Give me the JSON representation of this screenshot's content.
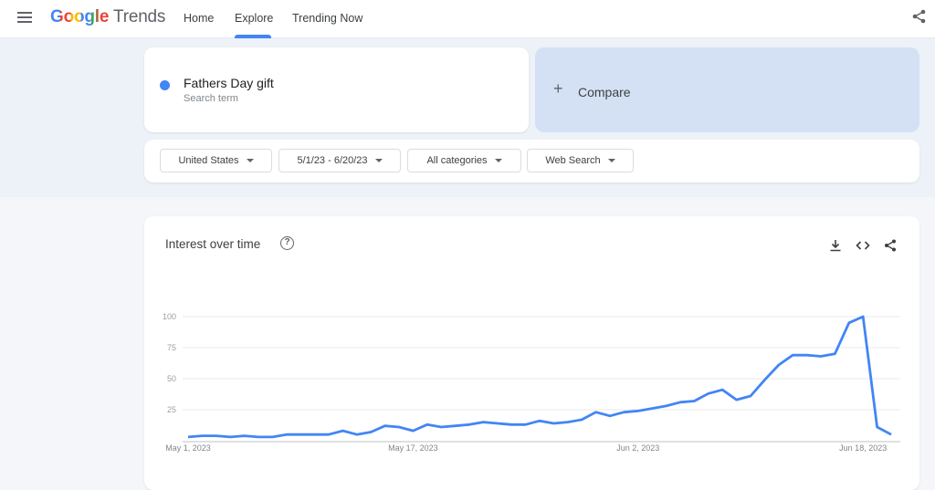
{
  "header": {
    "logo_google": "Google",
    "logo_trends": "Trends",
    "nav": [
      {
        "label": "Home"
      },
      {
        "label": "Explore",
        "active": true
      },
      {
        "label": "Trending Now"
      }
    ],
    "accent": "#4285f4"
  },
  "search": {
    "term": "Fathers Day gift",
    "term_type": "Search term",
    "term_color": "#4285f4",
    "compare_label": "Compare"
  },
  "filters": {
    "region": "United States",
    "date_range": "5/1/23 - 6/20/23",
    "category": "All categories",
    "property": "Web Search"
  },
  "chart_card": {
    "title": "Interest over time"
  },
  "chart_data": {
    "type": "line",
    "title": "Interest over time",
    "ylim": [
      0,
      100
    ],
    "yticks": [
      25,
      50,
      75,
      100
    ],
    "xtick_labels": [
      "May 1, 2023",
      "May 17, 2023",
      "Jun 2, 2023",
      "Jun 18, 2023"
    ],
    "xtick_dates": [
      "2023-05-01",
      "2023-05-17",
      "2023-06-02",
      "2023-06-18"
    ],
    "grid": true,
    "series": [
      {
        "color": "#4285f4",
        "x": [
          "2023-05-01",
          "2023-05-02",
          "2023-05-03",
          "2023-05-04",
          "2023-05-05",
          "2023-05-06",
          "2023-05-07",
          "2023-05-08",
          "2023-05-09",
          "2023-05-10",
          "2023-05-11",
          "2023-05-12",
          "2023-05-13",
          "2023-05-14",
          "2023-05-15",
          "2023-05-16",
          "2023-05-17",
          "2023-05-18",
          "2023-05-19",
          "2023-05-20",
          "2023-05-21",
          "2023-05-22",
          "2023-05-23",
          "2023-05-24",
          "2023-05-25",
          "2023-05-26",
          "2023-05-27",
          "2023-05-28",
          "2023-05-29",
          "2023-05-30",
          "2023-05-31",
          "2023-06-01",
          "2023-06-02",
          "2023-06-03",
          "2023-06-04",
          "2023-06-05",
          "2023-06-06",
          "2023-06-07",
          "2023-06-08",
          "2023-06-09",
          "2023-06-10",
          "2023-06-11",
          "2023-06-12",
          "2023-06-13",
          "2023-06-14",
          "2023-06-15",
          "2023-06-16",
          "2023-06-17",
          "2023-06-18",
          "2023-06-19",
          "2023-06-20"
        ],
        "values": [
          3,
          4,
          4,
          3,
          4,
          3,
          3,
          5,
          5,
          5,
          5,
          8,
          5,
          7,
          12,
          11,
          8,
          13,
          11,
          12,
          13,
          15,
          14,
          13,
          13,
          16,
          14,
          15,
          17,
          23,
          20,
          23,
          24,
          26,
          28,
          31,
          32,
          38,
          41,
          33,
          36,
          49,
          61,
          69,
          69,
          68,
          70,
          95,
          100,
          11,
          5
        ]
      }
    ]
  }
}
